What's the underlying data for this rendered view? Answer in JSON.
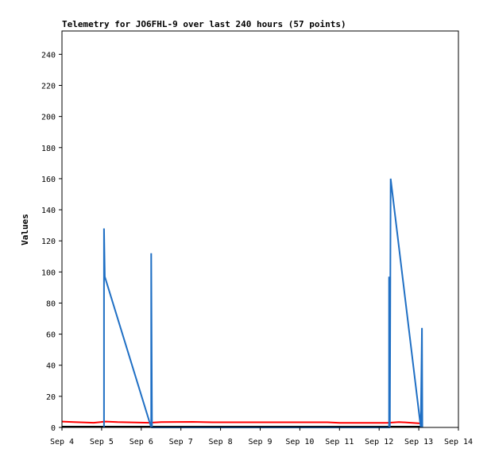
{
  "chart_data": {
    "type": "line",
    "title": "Telemetry for JO6FHL-9 over last 240 hours (57 points)",
    "xlabel": "",
    "ylabel": "Values",
    "x_ticks": [
      "Sep 4",
      "Sep 5",
      "Sep 6",
      "Sep 7",
      "Sep 8",
      "Sep 9",
      "Sep 10",
      "Sep 11",
      "Sep 12",
      "Sep 13",
      "Sep 14"
    ],
    "xlim_days": [
      4,
      14
    ],
    "ylim": [
      0,
      255
    ],
    "y_ticks": [
      0,
      20,
      40,
      60,
      80,
      100,
      120,
      140,
      160,
      180,
      200,
      220,
      240
    ],
    "grid": false,
    "legend": "none",
    "series": [
      {
        "color": "#000000",
        "points": [
          [
            4.0,
            0.5
          ],
          [
            13.1,
            0.5
          ]
        ]
      },
      {
        "color": "#ff0000",
        "points": [
          [
            4.0,
            3.8
          ],
          [
            4.3,
            3.5
          ],
          [
            4.8,
            3.0
          ],
          [
            5.1,
            3.8
          ],
          [
            5.4,
            3.4
          ],
          [
            6.2,
            3.0
          ],
          [
            6.5,
            3.5
          ],
          [
            7.3,
            3.6
          ],
          [
            7.8,
            3.3
          ],
          [
            10.7,
            3.3
          ],
          [
            11.0,
            2.9
          ],
          [
            12.2,
            2.9
          ],
          [
            12.5,
            3.5
          ],
          [
            12.8,
            3.0
          ],
          [
            13.1,
            2.5
          ]
        ]
      },
      {
        "color": "#1f6fc4",
        "points": [
          [
            5.06,
            0
          ],
          [
            5.06,
            128
          ],
          [
            5.08,
            97
          ],
          [
            6.25,
            0
          ],
          [
            6.25,
            112
          ],
          [
            6.27,
            0
          ],
          [
            12.25,
            0
          ],
          [
            12.25,
            97
          ],
          [
            12.27,
            0
          ],
          [
            12.29,
            160
          ],
          [
            13.05,
            0
          ],
          [
            13.08,
            64
          ],
          [
            13.09,
            0
          ]
        ]
      }
    ]
  }
}
